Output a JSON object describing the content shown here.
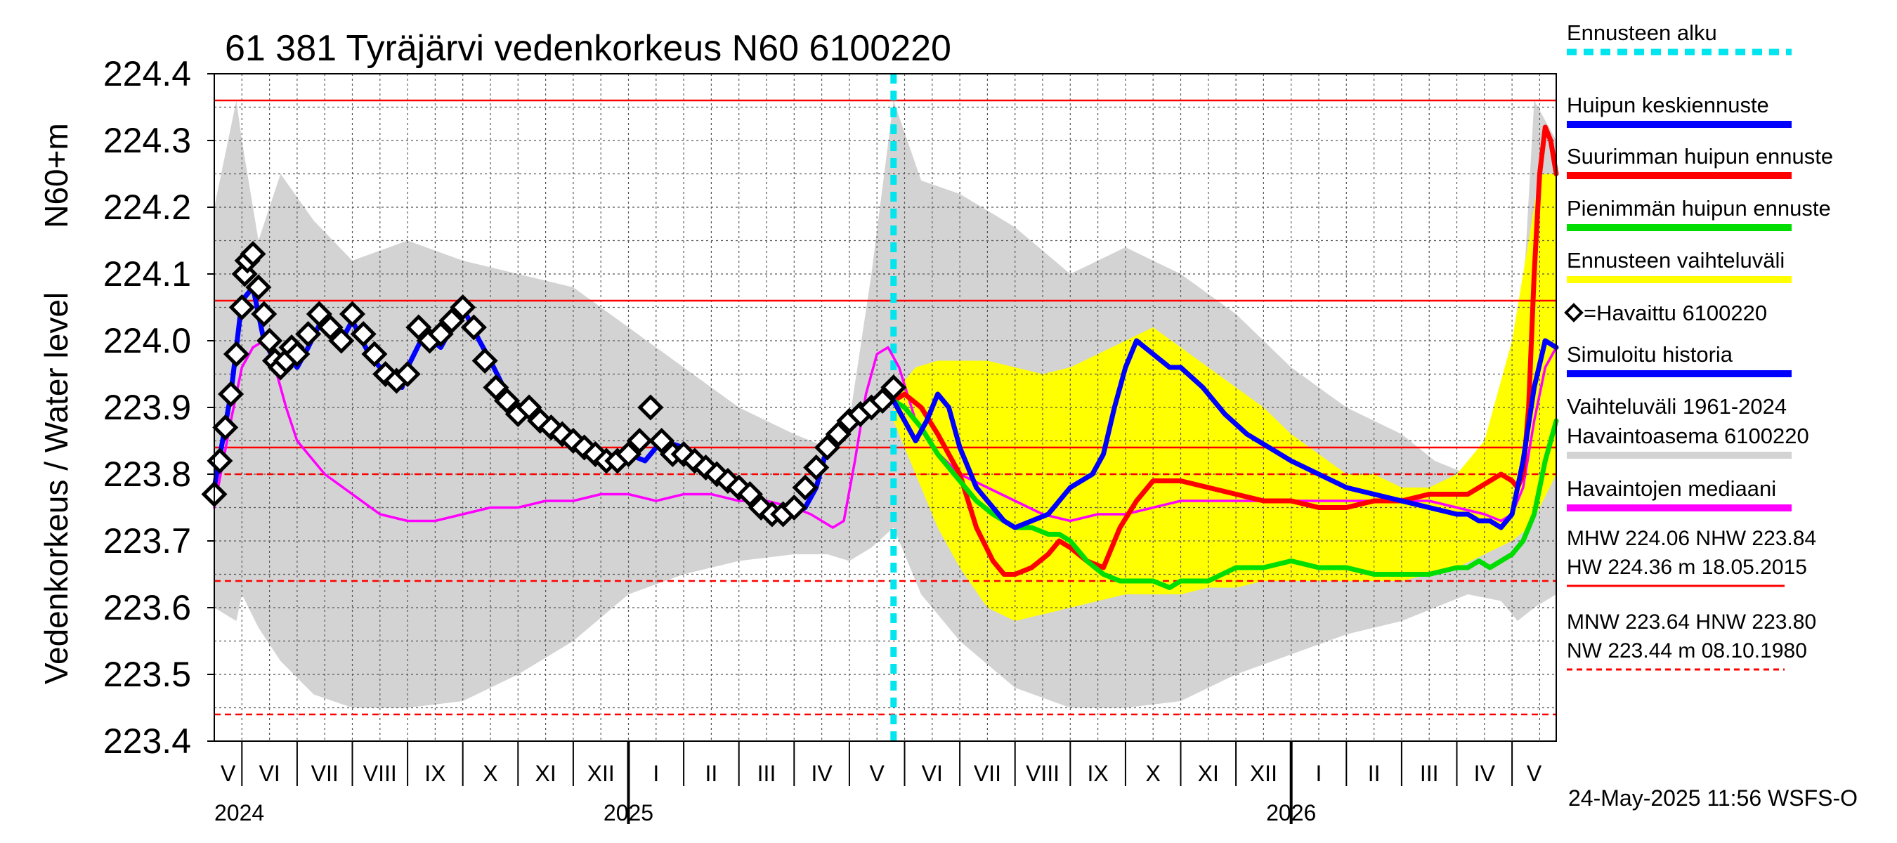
{
  "chart_data": {
    "type": "line",
    "title": "61 381 Tyräjärvi vedenkorkeus N60 6100220",
    "ylabel_unit": "N60+m",
    "ylabel": "Vedenkorkeus / Water level",
    "ylim": [
      223.4,
      224.4
    ],
    "yticks": [
      "223.4",
      "223.5",
      "223.6",
      "223.7",
      "223.8",
      "223.9",
      "224.0",
      "224.1",
      "224.2",
      "224.3",
      "224.4"
    ],
    "x_start_month": 4.5,
    "x_end_month": 28.8,
    "forecast_start_month": 16.8,
    "months": [
      {
        "label": "V",
        "start": 4,
        "end": 5
      },
      {
        "label": "VI",
        "start": 5,
        "end": 6
      },
      {
        "label": "VII",
        "start": 6,
        "end": 7
      },
      {
        "label": "VIII",
        "start": 7,
        "end": 8
      },
      {
        "label": "IX",
        "start": 8,
        "end": 9
      },
      {
        "label": "X",
        "start": 9,
        "end": 10
      },
      {
        "label": "XI",
        "start": 10,
        "end": 11
      },
      {
        "label": "XII",
        "start": 11,
        "end": 12
      },
      {
        "label": "I",
        "start": 12,
        "end": 13
      },
      {
        "label": "II",
        "start": 13,
        "end": 14
      },
      {
        "label": "III",
        "start": 14,
        "end": 15
      },
      {
        "label": "IV",
        "start": 15,
        "end": 16
      },
      {
        "label": "V",
        "start": 16,
        "end": 17
      },
      {
        "label": "VI",
        "start": 17,
        "end": 18
      },
      {
        "label": "VII",
        "start": 18,
        "end": 19
      },
      {
        "label": "VIII",
        "start": 19,
        "end": 20
      },
      {
        "label": "IX",
        "start": 20,
        "end": 21
      },
      {
        "label": "X",
        "start": 21,
        "end": 22
      },
      {
        "label": "XI",
        "start": 22,
        "end": 23
      },
      {
        "label": "XII",
        "start": 23,
        "end": 24
      },
      {
        "label": "I",
        "start": 24,
        "end": 25
      },
      {
        "label": "II",
        "start": 25,
        "end": 26
      },
      {
        "label": "III",
        "start": 26,
        "end": 27
      },
      {
        "label": "IV",
        "start": 27,
        "end": 28
      },
      {
        "label": "V",
        "start": 28,
        "end": 29
      }
    ],
    "years": [
      {
        "label": "2024",
        "at": 4.5
      },
      {
        "label": "2025",
        "at": 12
      },
      {
        "label": "2026",
        "at": 24
      }
    ],
    "reference_lines": [
      {
        "name": "HW",
        "value": 224.36,
        "style": "solid",
        "color": "#ff0000"
      },
      {
        "name": "MHW",
        "value": 224.06,
        "style": "solid",
        "color": "#ff0000"
      },
      {
        "name": "NHW",
        "value": 223.84,
        "style": "solid",
        "color": "#ff0000"
      },
      {
        "name": "HNW",
        "value": 223.8,
        "style": "dashed",
        "color": "#ff0000"
      },
      {
        "name": "MNW",
        "value": 223.64,
        "style": "dashed",
        "color": "#ff0000"
      },
      {
        "name": "NW",
        "value": 223.44,
        "style": "dashed",
        "color": "#ff0000"
      }
    ],
    "variation_band": {
      "name": "Vaihteluväli 1961-2024 Havaintoasema 6100220",
      "color": "#d3d3d3",
      "x": [
        4.5,
        4.9,
        5.0,
        5.3,
        5.7,
        6.3,
        7.0,
        8.0,
        9.0,
        10.0,
        11.0,
        12.0,
        13.0,
        14.0,
        15.0,
        15.6,
        16.0,
        16.4,
        16.8,
        17.3,
        18.0,
        19.0,
        20.0,
        21.0,
        22.0,
        23.0,
        24.0,
        25.0,
        26.0,
        26.6,
        27.2,
        27.8,
        28.1,
        28.4,
        28.8
      ],
      "lower": [
        223.6,
        223.58,
        223.62,
        223.57,
        223.52,
        223.47,
        223.45,
        223.45,
        223.46,
        223.5,
        223.55,
        223.62,
        223.65,
        223.67,
        223.68,
        223.68,
        223.67,
        223.69,
        223.72,
        223.62,
        223.55,
        223.48,
        223.45,
        223.45,
        223.46,
        223.5,
        223.53,
        223.56,
        223.58,
        223.6,
        223.62,
        223.61,
        223.58,
        223.6,
        223.62
      ],
      "upper": [
        224.2,
        224.36,
        224.3,
        224.15,
        224.25,
        224.18,
        224.12,
        224.15,
        224.12,
        224.1,
        224.08,
        224.02,
        223.96,
        223.9,
        223.86,
        223.84,
        223.88,
        224.1,
        224.36,
        224.24,
        224.22,
        224.17,
        224.1,
        224.14,
        224.1,
        224.04,
        223.96,
        223.9,
        223.86,
        223.82,
        223.8,
        223.82,
        223.92,
        224.36,
        224.3
      ]
    },
    "forecast_band": {
      "name": "Ennusteen vaihteluväli",
      "color": "#ffff00",
      "x": [
        16.8,
        17.2,
        17.6,
        18.0,
        18.5,
        19.0,
        19.5,
        20.0,
        20.5,
        21.0,
        21.5,
        22.0,
        22.5,
        23.0,
        23.5,
        24.0,
        24.5,
        25.0,
        25.5,
        26.0,
        26.5,
        27.0,
        27.5,
        28.0,
        28.3,
        28.5,
        28.8
      ],
      "lower": [
        223.88,
        223.8,
        223.72,
        223.66,
        223.6,
        223.58,
        223.59,
        223.6,
        223.61,
        223.62,
        223.62,
        223.62,
        223.63,
        223.63,
        223.64,
        223.64,
        223.64,
        223.64,
        223.64,
        223.64,
        223.65,
        223.66,
        223.68,
        223.7,
        223.72,
        223.75,
        223.8
      ],
      "upper": [
        223.92,
        223.96,
        223.97,
        223.97,
        223.97,
        223.96,
        223.95,
        223.96,
        223.98,
        224.0,
        224.02,
        223.99,
        223.96,
        223.93,
        223.9,
        223.86,
        223.83,
        223.8,
        223.8,
        223.78,
        223.78,
        223.8,
        223.85,
        224.0,
        224.15,
        224.25,
        224.25
      ]
    },
    "series": [
      {
        "name": "Havaintojen mediaani",
        "color": "#ff00ff",
        "x": [
          4.5,
          4.8,
          5.0,
          5.2,
          5.4,
          5.6,
          5.8,
          6.0,
          6.5,
          7.0,
          7.5,
          8.0,
          8.5,
          9.0,
          9.5,
          10.0,
          10.5,
          11.0,
          11.5,
          12.0,
          12.5,
          13.0,
          13.5,
          14.0,
          14.5,
          15.0,
          15.3,
          15.5,
          15.7,
          15.9,
          16.1,
          16.3,
          16.5,
          16.7,
          16.9,
          17.2,
          17.5,
          18.0,
          18.5,
          19.0,
          19.5,
          20.0,
          20.5,
          21.0,
          21.5,
          22.0,
          22.5,
          23.0,
          24.0,
          25.0,
          26.0,
          26.5,
          27.0,
          27.5,
          27.8,
          28.0,
          28.2,
          28.4,
          28.6,
          28.8
        ],
        "y": [
          223.75,
          223.88,
          223.96,
          223.99,
          224.0,
          223.96,
          223.9,
          223.85,
          223.8,
          223.77,
          223.74,
          223.73,
          223.73,
          223.74,
          223.75,
          223.75,
          223.76,
          223.76,
          223.77,
          223.77,
          223.76,
          223.77,
          223.77,
          223.76,
          223.76,
          223.75,
          223.74,
          223.73,
          223.72,
          223.73,
          223.82,
          223.92,
          223.98,
          223.99,
          223.96,
          223.88,
          223.84,
          223.8,
          223.78,
          223.76,
          223.74,
          223.73,
          223.74,
          223.74,
          223.75,
          223.76,
          223.76,
          223.76,
          223.76,
          223.76,
          223.76,
          223.76,
          223.75,
          223.74,
          223.73,
          223.74,
          223.78,
          223.88,
          223.96,
          223.99
        ]
      },
      {
        "name": "Simuloitu historia",
        "color": "#0000ff",
        "x": [
          4.5,
          4.8,
          5.0,
          5.2,
          5.4,
          5.6,
          5.8,
          6.0,
          6.2,
          6.5,
          6.8,
          7.0,
          7.3,
          7.6,
          7.9,
          8.0,
          8.3,
          8.6,
          9.0,
          9.3,
          9.5,
          9.8,
          10.0,
          10.3,
          10.6,
          11.0,
          11.3,
          11.6,
          12.0,
          12.3,
          12.6,
          13.0,
          13.3,
          13.6,
          14.0,
          14.3,
          14.6,
          15.0,
          15.2,
          15.4,
          15.6,
          15.8,
          16.0,
          16.2,
          16.4,
          16.6,
          16.8
        ],
        "y": [
          223.78,
          223.92,
          224.06,
          224.08,
          224.0,
          223.97,
          223.98,
          223.96,
          223.99,
          224.04,
          224.0,
          224.03,
          223.98,
          223.95,
          223.93,
          223.96,
          224.01,
          223.99,
          224.05,
          224.0,
          223.97,
          223.92,
          223.9,
          223.88,
          223.86,
          223.86,
          223.84,
          223.82,
          223.83,
          223.82,
          223.85,
          223.84,
          223.81,
          223.8,
          223.78,
          223.76,
          223.74,
          223.74,
          223.75,
          223.78,
          223.84,
          223.87,
          223.88,
          223.9,
          223.91,
          223.92,
          223.91
        ]
      },
      {
        "name": "Suurimman huipun ennuste",
        "color": "#ff0000",
        "x": [
          16.8,
          17.0,
          17.3,
          17.6,
          18.0,
          18.3,
          18.6,
          18.8,
          19.0,
          19.3,
          19.6,
          19.8,
          20.0,
          20.3,
          20.6,
          20.9,
          21.2,
          21.5,
          21.8,
          22.0,
          22.5,
          23.0,
          23.5,
          24.0,
          24.5,
          25.0,
          25.5,
          26.0,
          26.5,
          27.0,
          27.2,
          27.4,
          27.6,
          27.8,
          28.0,
          28.1,
          28.2,
          28.3,
          28.4,
          28.5,
          28.6,
          28.7,
          28.8
        ],
        "y": [
          223.91,
          223.92,
          223.9,
          223.86,
          223.8,
          223.72,
          223.67,
          223.65,
          223.65,
          223.66,
          223.68,
          223.7,
          223.69,
          223.67,
          223.66,
          223.72,
          223.76,
          223.79,
          223.79,
          223.79,
          223.78,
          223.77,
          223.76,
          223.76,
          223.75,
          223.75,
          223.76,
          223.76,
          223.77,
          223.77,
          223.77,
          223.78,
          223.79,
          223.8,
          223.79,
          223.78,
          223.8,
          223.9,
          224.1,
          224.25,
          224.32,
          224.3,
          224.25
        ]
      },
      {
        "name": "Pienimmän huipun ennuste",
        "color": "#00dd00",
        "x": [
          16.8,
          17.0,
          17.3,
          17.6,
          18.0,
          18.3,
          18.6,
          18.8,
          19.0,
          19.3,
          19.6,
          19.8,
          20.0,
          20.3,
          20.6,
          20.9,
          21.2,
          21.5,
          21.8,
          22.0,
          22.5,
          23.0,
          23.5,
          24.0,
          24.5,
          25.0,
          25.5,
          26.0,
          26.5,
          27.0,
          27.2,
          27.4,
          27.6,
          27.8,
          28.0,
          28.2,
          28.4,
          28.6,
          28.8
        ],
        "y": [
          223.91,
          223.9,
          223.87,
          223.83,
          223.79,
          223.76,
          223.74,
          223.73,
          223.72,
          223.72,
          223.71,
          223.71,
          223.7,
          223.67,
          223.65,
          223.64,
          223.64,
          223.64,
          223.63,
          223.64,
          223.64,
          223.66,
          223.66,
          223.67,
          223.66,
          223.66,
          223.65,
          223.65,
          223.65,
          223.66,
          223.66,
          223.67,
          223.66,
          223.67,
          223.68,
          223.7,
          223.74,
          223.82,
          223.88
        ]
      },
      {
        "name": "Huipun keskiennuste",
        "color": "#0000ff",
        "x": [
          16.8,
          17.0,
          17.2,
          17.4,
          17.6,
          17.8,
          18.0,
          18.3,
          18.6,
          18.8,
          19.0,
          19.3,
          19.6,
          19.8,
          20.0,
          20.2,
          20.4,
          20.6,
          20.8,
          21.0,
          21.2,
          21.5,
          21.8,
          22.0,
          22.4,
          22.8,
          23.2,
          23.6,
          24.0,
          24.5,
          25.0,
          25.5,
          26.0,
          26.5,
          27.0,
          27.2,
          27.4,
          27.6,
          27.8,
          28.0,
          28.2,
          28.4,
          28.6,
          28.8
        ],
        "y": [
          223.91,
          223.88,
          223.85,
          223.88,
          223.92,
          223.9,
          223.84,
          223.78,
          223.75,
          223.73,
          223.72,
          223.73,
          223.74,
          223.76,
          223.78,
          223.79,
          223.8,
          223.83,
          223.9,
          223.96,
          224.0,
          223.98,
          223.96,
          223.96,
          223.93,
          223.89,
          223.86,
          223.84,
          223.82,
          223.8,
          223.78,
          223.77,
          223.76,
          223.75,
          223.74,
          223.74,
          223.73,
          223.73,
          223.72,
          223.74,
          223.82,
          223.93,
          224.0,
          223.99
        ]
      }
    ],
    "observed": {
      "name": "Havaittu 6100220",
      "color": "#000000",
      "x": [
        4.5,
        4.6,
        4.7,
        4.8,
        4.9,
        5.0,
        5.05,
        5.1,
        5.2,
        5.3,
        5.4,
        5.5,
        5.6,
        5.7,
        5.8,
        5.9,
        6.0,
        6.2,
        6.4,
        6.6,
        6.8,
        7.0,
        7.2,
        7.4,
        7.6,
        7.8,
        8.0,
        8.2,
        8.4,
        8.6,
        8.8,
        9.0,
        9.2,
        9.4,
        9.6,
        9.8,
        10.0,
        10.2,
        10.4,
        10.6,
        10.8,
        11.0,
        11.2,
        11.4,
        11.6,
        11.8,
        12.0,
        12.2,
        12.4,
        12.6,
        12.8,
        13.0,
        13.2,
        13.4,
        13.6,
        13.8,
        14.0,
        14.2,
        14.4,
        14.6,
        14.8,
        15.0,
        15.2,
        15.4,
        15.6,
        15.8,
        16.0,
        16.2,
        16.4,
        16.6,
        16.8
      ],
      "y": [
        223.77,
        223.82,
        223.87,
        223.92,
        223.98,
        224.05,
        224.1,
        224.12,
        224.13,
        224.08,
        224.04,
        224.0,
        223.97,
        223.96,
        223.97,
        223.99,
        223.98,
        224.01,
        224.04,
        224.02,
        224.0,
        224.04,
        224.01,
        223.98,
        223.95,
        223.94,
        223.95,
        224.02,
        224.0,
        224.01,
        224.03,
        224.05,
        224.02,
        223.97,
        223.93,
        223.91,
        223.89,
        223.9,
        223.88,
        223.87,
        223.86,
        223.85,
        223.84,
        223.83,
        223.82,
        223.82,
        223.83,
        223.85,
        223.9,
        223.85,
        223.83,
        223.83,
        223.82,
        223.81,
        223.8,
        223.79,
        223.78,
        223.77,
        223.75,
        223.74,
        223.74,
        223.75,
        223.78,
        223.81,
        223.84,
        223.86,
        223.88,
        223.89,
        223.9,
        223.91,
        223.93
      ]
    },
    "legend": [
      {
        "label": "Ennusteen alku",
        "kind": "dashed",
        "color": "#00e5ee"
      },
      {
        "label": "Huipun keskiennuste",
        "kind": "line",
        "color": "#0000ff"
      },
      {
        "label": "Suurimman huipun ennuste",
        "kind": "line",
        "color": "#ff0000"
      },
      {
        "label": "Pienimmän huipun ennuste",
        "kind": "line",
        "color": "#00dd00"
      },
      {
        "label": "Ennusteen vaihteluväli",
        "kind": "line",
        "color": "#ffff00"
      },
      {
        "label": "=Havaittu 6100220",
        "kind": "marker",
        "color": "#000000"
      },
      {
        "label": "Simuloitu historia",
        "kind": "line",
        "color": "#0000ff"
      },
      {
        "label": "Vaihteluväli 1961-2024",
        "kind": "text",
        "color": "#000000"
      },
      {
        "label": " Havaintoasema 6100220",
        "kind": "line",
        "color": "#d3d3d3"
      },
      {
        "label": "Havaintojen mediaani",
        "kind": "line",
        "color": "#ff00ff"
      }
    ],
    "stats": {
      "line1": "MHW 224.06 NHW 223.84",
      "line2": "HW 224.36 m 18.05.2015",
      "line3": "MNW 223.64 HNW 223.80",
      "line4": "NW 223.44 m 08.10.1980"
    },
    "timestamp": "24-May-2025 11:56 WSFS-O"
  }
}
